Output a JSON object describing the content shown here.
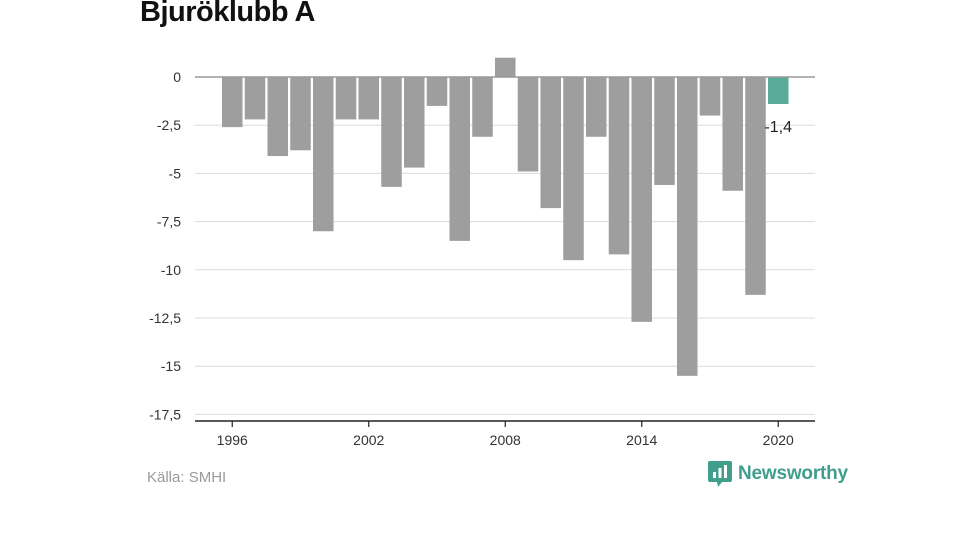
{
  "title": "Bjuröklubb A",
  "source": "Källa: SMHI",
  "brand": {
    "name": "Newsworthy",
    "icon": "newsworthy-logo-icon",
    "color": "#3f9e8c"
  },
  "colors": {
    "bar": "#9e9e9e",
    "highlight": "#5aab9a",
    "grid": "#dcdcdc",
    "baseline": "#999999"
  },
  "chart_data": {
    "type": "bar",
    "x": [
      1996,
      1997,
      1998,
      1999,
      2000,
      2001,
      2002,
      2003,
      2004,
      2005,
      2006,
      2007,
      2008,
      2009,
      2010,
      2011,
      2012,
      2013,
      2014,
      2015,
      2016,
      2017,
      2018,
      2019,
      2020
    ],
    "values": [
      -2.6,
      -2.2,
      -4.1,
      -3.8,
      -8.0,
      -2.2,
      -2.2,
      -5.7,
      -4.7,
      -1.5,
      -8.5,
      -3.1,
      1.0,
      -4.9,
      -6.8,
      -9.5,
      -3.1,
      -9.2,
      -12.7,
      -5.6,
      -15.5,
      -2.0,
      -5.9,
      -11.3,
      -1.4
    ],
    "highlight_index": 24,
    "highlight_label": "-1,4",
    "x_ticks": [
      1996,
      2002,
      2008,
      2014,
      2020
    ],
    "y_ticks": [
      "0",
      "-2,5",
      "-5",
      "-7,5",
      "-10",
      "-12,5",
      "-15",
      "-17,5"
    ],
    "y_tick_values": [
      0,
      -2.5,
      -5,
      -7.5,
      -10,
      -12.5,
      -15,
      -17.5
    ],
    "ylim": [
      -17.5,
      1.0
    ],
    "grid": true,
    "legend": "none"
  }
}
